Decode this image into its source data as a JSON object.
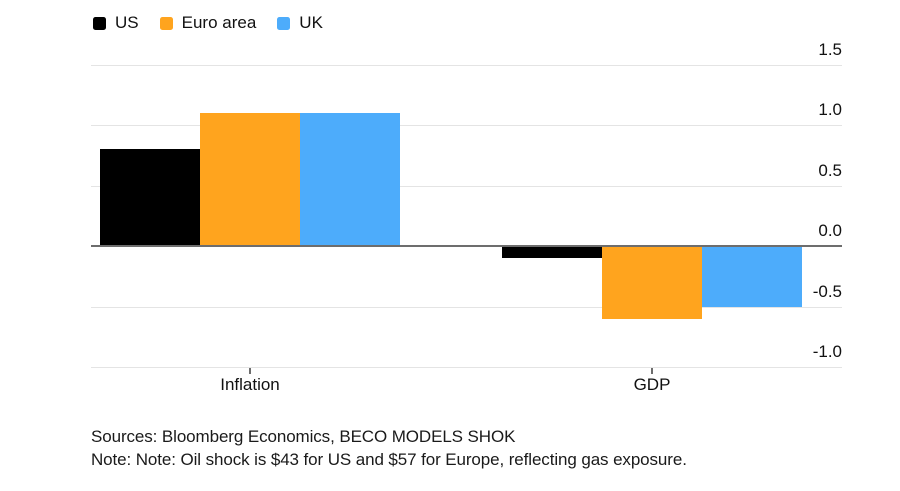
{
  "legend": {
    "items": [
      {
        "label": "US",
        "color": "#000000"
      },
      {
        "label": "Euro area",
        "color": "#FFA41E"
      },
      {
        "label": "UK",
        "color": "#4DACFB"
      }
    ]
  },
  "chart_data": {
    "type": "bar",
    "categories": [
      "Inflation",
      "GDP"
    ],
    "series": [
      {
        "name": "US",
        "color": "#000000",
        "values": [
          0.8,
          -0.1
        ]
      },
      {
        "name": "Euro area",
        "color": "#FFA41E",
        "values": [
          1.1,
          -0.6
        ]
      },
      {
        "name": "UK",
        "color": "#4DACFB",
        "values": [
          1.1,
          -0.5
        ]
      }
    ],
    "title": "",
    "xlabel": "",
    "ylabel": "",
    "ylim": [
      -1.0,
      1.5
    ],
    "yticks": [
      1.5,
      1.0,
      0.5,
      0.0,
      -0.5,
      -1.0
    ],
    "ytick_labels": [
      "1.5",
      "1.0",
      "0.5",
      "0.0",
      "-0.5",
      "-1.0"
    ],
    "grid": true,
    "legend_position": "top-left",
    "colors": {
      "gridline": "#e4e4e4",
      "zero_line": "#6d6d6d",
      "axis_text": "#111111"
    }
  },
  "footer": {
    "sources": "Sources: Bloomberg Economics, BECO MODELS SHOK",
    "note": "Note: Note: Oil shock is $43 for US and $57 for Europe, reflecting gas exposure."
  }
}
